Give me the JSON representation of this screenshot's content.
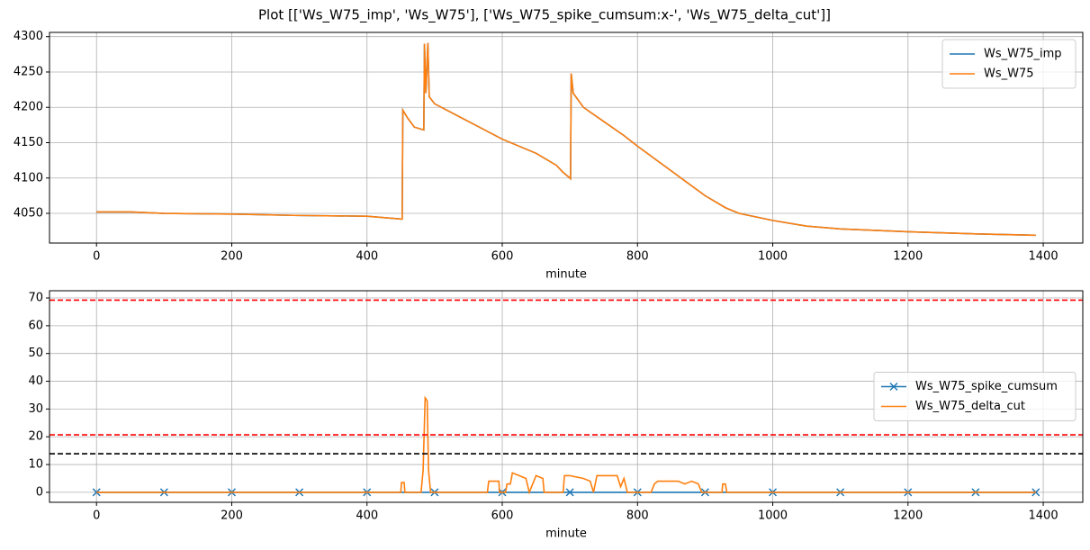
{
  "title": "Plot [['Ws_W75_imp', 'Ws_W75'], ['Ws_W75_spike_cumsum:x-', 'Ws_W75_delta_cut']]",
  "chart_data": [
    {
      "type": "line",
      "xlabel": "minute",
      "xlim": [
        -69.5,
        1458.5
      ],
      "ylim": [
        4008,
        4306
      ],
      "xticks": [
        0,
        200,
        400,
        600,
        800,
        1000,
        1200,
        1400
      ],
      "yticks": [
        4050,
        4100,
        4150,
        4200,
        4250,
        4300
      ],
      "grid": true,
      "legend_loc": "upper right",
      "series": [
        {
          "name": "Ws_W75_imp",
          "color": "#1f77b4",
          "x": [
            0,
            50,
            100,
            200,
            300,
            400,
            450,
            452,
            453,
            460,
            470,
            484,
            485,
            487,
            490,
            492,
            500,
            550,
            600,
            650,
            680,
            690,
            700,
            701,
            702,
            705,
            720,
            750,
            780,
            800,
            850,
            900,
            930,
            950,
            1000,
            1050,
            1100,
            1200,
            1300,
            1389
          ],
          "values": [
            4052,
            4052,
            4050,
            4049,
            4047,
            4046,
            4042,
            4042,
            4196,
            4185,
            4172,
            4168,
            4290,
            4220,
            4291,
            4215,
            4205,
            4180,
            4155,
            4135,
            4118,
            4108,
            4100,
            4099,
            4248,
            4220,
            4200,
            4180,
            4160,
            4145,
            4110,
            4075,
            4058,
            4050,
            4040,
            4032,
            4028,
            4024,
            4021,
            4019
          ]
        },
        {
          "name": "Ws_W75",
          "color": "#ff7f0e",
          "x": [
            0,
            50,
            100,
            200,
            300,
            400,
            450,
            452,
            453,
            460,
            470,
            484,
            485,
            487,
            490,
            492,
            500,
            550,
            600,
            650,
            680,
            690,
            700,
            701,
            702,
            705,
            720,
            750,
            780,
            800,
            850,
            900,
            930,
            950,
            1000,
            1050,
            1100,
            1200,
            1300,
            1389
          ],
          "values": [
            4052,
            4052,
            4050,
            4049,
            4047,
            4046,
            4042,
            4042,
            4196,
            4185,
            4172,
            4168,
            4290,
            4220,
            4291,
            4215,
            4205,
            4180,
            4155,
            4135,
            4118,
            4108,
            4100,
            4099,
            4248,
            4220,
            4200,
            4180,
            4160,
            4145,
            4110,
            4075,
            4058,
            4050,
            4040,
            4032,
            4028,
            4024,
            4021,
            4019
          ]
        }
      ]
    },
    {
      "type": "line",
      "xlabel": "minute",
      "xlim": [
        -69.5,
        1458.5
      ],
      "ylim": [
        -3.6,
        72.6
      ],
      "xticks": [
        0,
        200,
        400,
        600,
        800,
        1000,
        1200,
        1400
      ],
      "yticks": [
        0,
        10,
        20,
        30,
        40,
        50,
        60,
        70
      ],
      "grid": true,
      "legend_loc": "center right",
      "hlines": [
        {
          "value": 69.2,
          "color": "red",
          "dashed": true
        },
        {
          "value": 20.7,
          "color": "red",
          "dashed": true
        },
        {
          "value": 13.9,
          "color": "black",
          "dashed": true
        }
      ],
      "series": [
        {
          "name": "Ws_W75_spike_cumsum",
          "color": "#1f77b4",
          "marker": "x",
          "x": [
            0,
            100,
            200,
            300,
            400,
            500,
            600,
            700,
            800,
            900,
            1000,
            1100,
            1200,
            1300,
            1389
          ],
          "values": [
            0,
            0,
            0,
            0,
            0,
            0,
            0,
            0,
            0,
            0,
            0,
            0,
            0,
            0,
            0
          ]
        },
        {
          "name": "Ws_W75_delta_cut",
          "color": "#ff7f0e",
          "x": [
            0,
            450,
            451,
            455,
            456,
            480,
            483,
            486,
            489,
            491,
            494,
            578,
            580,
            595,
            596,
            605,
            607,
            612,
            615,
            625,
            635,
            640,
            650,
            660,
            662,
            690,
            692,
            700,
            720,
            730,
            735,
            740,
            770,
            775,
            780,
            785,
            820,
            825,
            830,
            860,
            870,
            880,
            890,
            895,
            925,
            926,
            930,
            932,
            1389
          ],
          "values": [
            0,
            0,
            3.5,
            3.5,
            0,
            0,
            8,
            34,
            33,
            8,
            0,
            0,
            4,
            4,
            0,
            0,
            3,
            3,
            7,
            6,
            5,
            0,
            6,
            5,
            0,
            0,
            6,
            6,
            5,
            4,
            0,
            6,
            6,
            2,
            5,
            0,
            0,
            3,
            4,
            4,
            3,
            4,
            3,
            0,
            0,
            3,
            3,
            0,
            0
          ]
        }
      ]
    }
  ]
}
